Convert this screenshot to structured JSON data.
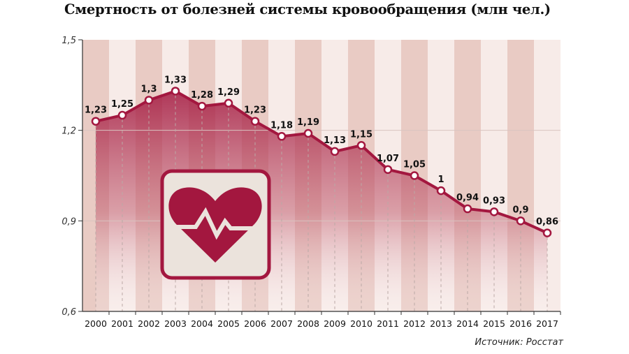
{
  "title": "Смертность от болезней системы кровообращения (млн чел.)",
  "source": "Источник: Росстат",
  "colors": {
    "line": "#a3173f",
    "stripe_dark": "#e9cbc4",
    "stripe_light": "#f7ebe8",
    "icon": "#a3173f",
    "icon_bg": "#ebe3dc"
  },
  "icon": "heart-pulse-icon",
  "chart_data": {
    "type": "line",
    "title": "Смертность от болезней системы кровообращения (млн чел.)",
    "xlabel": "",
    "ylabel": "млн чел.",
    "categories": [
      "2000",
      "2001",
      "2002",
      "2003",
      "2004",
      "2005",
      "2006",
      "2007",
      "2008",
      "2009",
      "2010",
      "2011",
      "2012",
      "2013",
      "2014",
      "2015",
      "2016",
      "2017"
    ],
    "values": [
      1.23,
      1.25,
      1.3,
      1.33,
      1.28,
      1.29,
      1.23,
      1.18,
      1.19,
      1.13,
      1.15,
      1.07,
      1.05,
      1,
      0.94,
      0.93,
      0.9,
      0.86
    ],
    "labels": [
      "1,23",
      "1,25",
      "1,3",
      "1,33",
      "1,28",
      "1,29",
      "1,23",
      "1,18",
      "1,19",
      "1,13",
      "1,15",
      "1,07",
      "1,05",
      "1",
      "0,94",
      "0,93",
      "0,9",
      "0,86"
    ],
    "ylim": [
      0.6,
      1.5
    ],
    "yticks": [
      0.6,
      0.9,
      1.2,
      1.5
    ],
    "ytick_labels": [
      "0,6",
      "0,9",
      "1,2",
      "1,5"
    ],
    "grid": true
  }
}
